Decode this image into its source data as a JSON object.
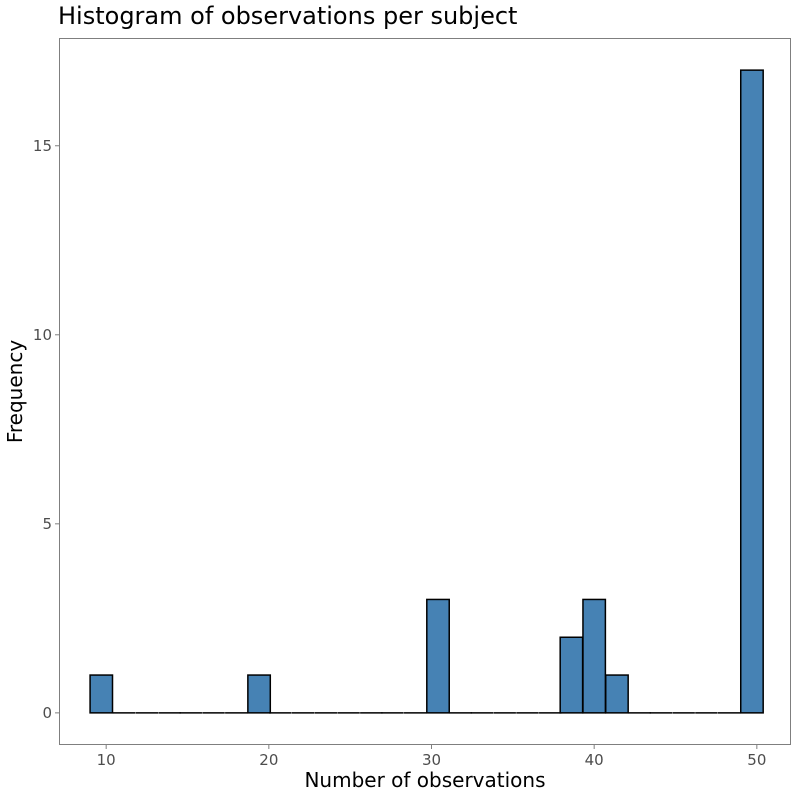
{
  "chart_data": {
    "type": "bar",
    "title": "Histogram of observations per subject",
    "xlabel": "Number of observations",
    "ylabel": "Frequency",
    "xlim": [
      7.1,
      52.1
    ],
    "ylim": [
      -0.85,
      17.85
    ],
    "x_ticks": [
      10,
      20,
      30,
      40,
      50
    ],
    "y_ticks": [
      0,
      5,
      10,
      15
    ],
    "bin_width": 1.379,
    "bar_color": "#4682B4",
    "bar_edge_color": "#000000",
    "grid": false,
    "bins": [
      {
        "x": 9.7,
        "count": 1
      },
      {
        "x": 11.1,
        "count": 0
      },
      {
        "x": 12.5,
        "count": 0
      },
      {
        "x": 13.9,
        "count": 0
      },
      {
        "x": 15.2,
        "count": 0
      },
      {
        "x": 16.6,
        "count": 0
      },
      {
        "x": 18.0,
        "count": 0
      },
      {
        "x": 19.4,
        "count": 1
      },
      {
        "x": 20.7,
        "count": 0
      },
      {
        "x": 22.1,
        "count": 0
      },
      {
        "x": 23.5,
        "count": 0
      },
      {
        "x": 24.9,
        "count": 0
      },
      {
        "x": 26.3,
        "count": 0
      },
      {
        "x": 27.6,
        "count": 0
      },
      {
        "x": 29.0,
        "count": 0
      },
      {
        "x": 30.4,
        "count": 3
      },
      {
        "x": 31.8,
        "count": 0
      },
      {
        "x": 33.1,
        "count": 0
      },
      {
        "x": 34.5,
        "count": 0
      },
      {
        "x": 35.9,
        "count": 0
      },
      {
        "x": 37.3,
        "count": 0
      },
      {
        "x": 38.6,
        "count": 2
      },
      {
        "x": 40.0,
        "count": 3
      },
      {
        "x": 41.4,
        "count": 1
      },
      {
        "x": 42.8,
        "count": 0
      },
      {
        "x": 44.1,
        "count": 0
      },
      {
        "x": 45.5,
        "count": 0
      },
      {
        "x": 46.9,
        "count": 0
      },
      {
        "x": 48.3,
        "count": 0
      },
      {
        "x": 49.7,
        "count": 17
      }
    ]
  }
}
